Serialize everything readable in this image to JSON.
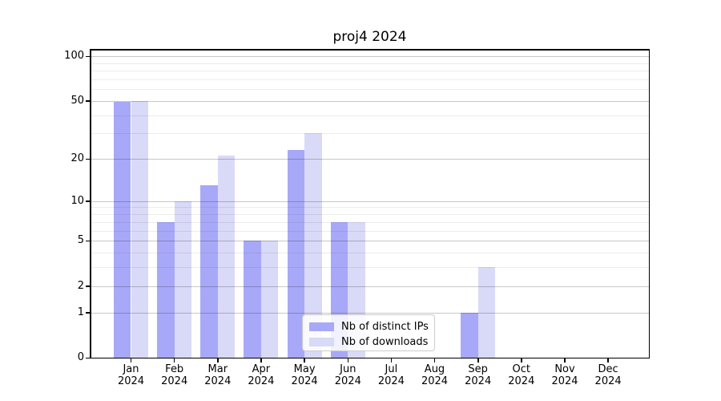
{
  "chart_data": {
    "type": "bar",
    "title": "proj4 2024",
    "categories": [
      "Jan 2024",
      "Feb 2024",
      "Mar 2024",
      "Apr 2024",
      "May 2024",
      "Jun 2024",
      "Jul 2024",
      "Aug 2024",
      "Sep 2024",
      "Oct 2024",
      "Nov 2024",
      "Dec 2024"
    ],
    "series": [
      {
        "name": "Nb of distinct IPs",
        "color": "#a8a8f8",
        "values": [
          49,
          7,
          13,
          5,
          23,
          7,
          0,
          0,
          1,
          0,
          0,
          0
        ]
      },
      {
        "name": "Nb of downloads",
        "color": "#d9d9f8",
        "values": [
          50,
          10,
          21,
          5,
          30,
          7,
          0,
          0,
          3,
          0,
          0,
          0
        ]
      }
    ],
    "yscale": "log1p",
    "ylim": [
      0,
      110
    ],
    "y_major_ticks": [
      0,
      1,
      2,
      5,
      10,
      20,
      50,
      100
    ],
    "y_minor_ticks": [
      3,
      4,
      6,
      7,
      8,
      9,
      30,
      40,
      60,
      70,
      80,
      90
    ],
    "grid": true,
    "legend_position": "lower center",
    "xlabel": "",
    "ylabel": ""
  }
}
